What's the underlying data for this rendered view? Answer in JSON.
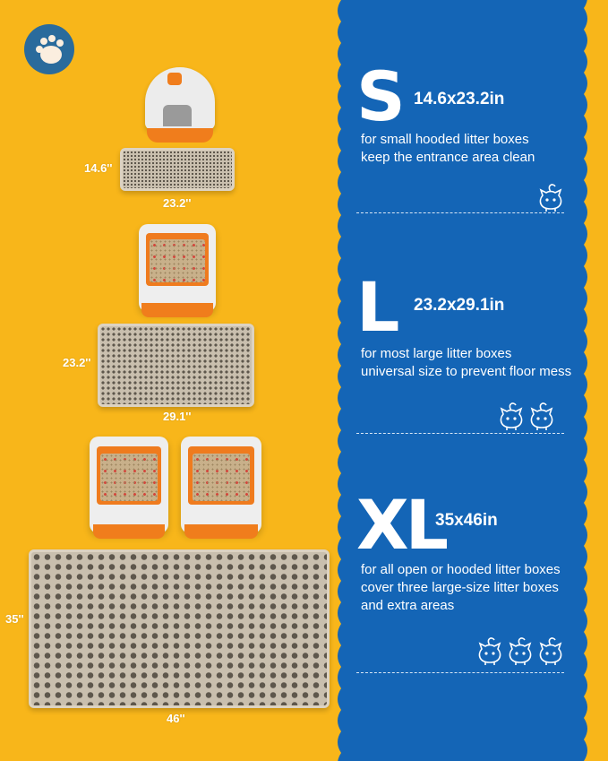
{
  "colors": {
    "background": "#F8B61A",
    "panel": "#1465B6",
    "accent": "#F07D1C"
  },
  "logo": {
    "icon": "paw-icon"
  },
  "left": {
    "small": {
      "height_label": "14.6''",
      "width_label": "23.2''"
    },
    "large": {
      "height_label": "23.2''",
      "width_label": "29.1''"
    },
    "xl": {
      "height_label": "35''",
      "width_label": "46''"
    }
  },
  "sizes": [
    {
      "letter": "S",
      "dims": "14.6x23.2in",
      "lines": [
        "for small hooded litter boxes",
        "keep the entrance area clean"
      ],
      "cats": 1
    },
    {
      "letter": "L",
      "dims": "23.2x29.1in",
      "lines": [
        "for most large litter boxes",
        "universal size to prevent floor mess"
      ],
      "cats": 2
    },
    {
      "letter": "XL",
      "dims": "35x46in",
      "lines": [
        "for all open or hooded litter boxes",
        "cover three large-size litter boxes",
        "and extra areas"
      ],
      "cats": 3
    }
  ]
}
